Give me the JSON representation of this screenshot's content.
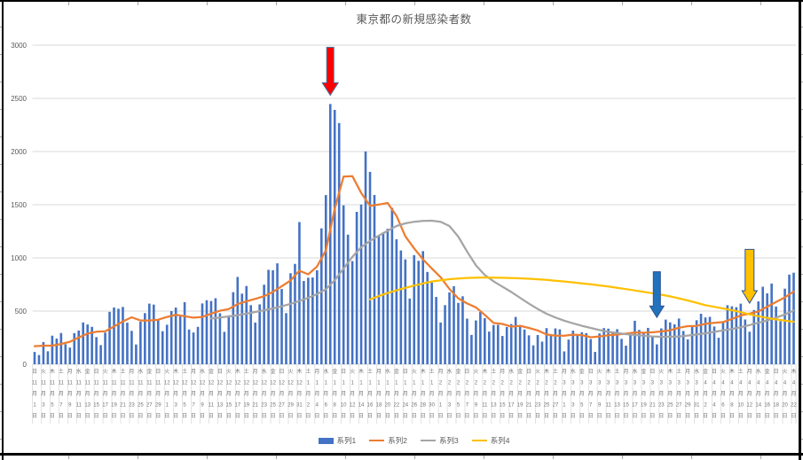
{
  "window": {
    "background": "#FFFFFF",
    "frame_color": "#000000",
    "tick_color": "#A6A6A6"
  },
  "chart_data": {
    "type": "combo-bar-line",
    "title": "東京都の新規感染者数",
    "title_color": "#595959",
    "axis_label_color": "#595959",
    "x_label_color": "#757575",
    "gridline_color": "#D9D9D9",
    "legend_position": "bottom",
    "ylim": [
      0,
      3000
    ],
    "yticks": [
      0,
      500,
      1000,
      1500,
      2000,
      2500,
      3000
    ],
    "x_label_suffix": {
      "month": "月",
      "day": "日"
    },
    "x_label_note": "labels shown every 2nd day; rows stacked vertically: weekday, month, 月, day, 日",
    "x_labels": [
      [
        "日",
        "11",
        "1"
      ],
      [
        "火",
        "11",
        "3"
      ],
      [
        "木",
        "11",
        "5"
      ],
      [
        "土",
        "11",
        "7"
      ],
      [
        "月",
        "11",
        "9"
      ],
      [
        "水",
        "11",
        "11"
      ],
      [
        "金",
        "11",
        "13"
      ],
      [
        "日",
        "11",
        "15"
      ],
      [
        "火",
        "11",
        "17"
      ],
      [
        "木",
        "11",
        "19"
      ],
      [
        "土",
        "11",
        "21"
      ],
      [
        "月",
        "11",
        "23"
      ],
      [
        "水",
        "11",
        "25"
      ],
      [
        "金",
        "11",
        "27"
      ],
      [
        "日",
        "11",
        "29"
      ],
      [
        "火",
        "12",
        "1"
      ],
      [
        "木",
        "12",
        "3"
      ],
      [
        "土",
        "12",
        "5"
      ],
      [
        "月",
        "12",
        "7"
      ],
      [
        "水",
        "12",
        "9"
      ],
      [
        "金",
        "12",
        "11"
      ],
      [
        "日",
        "12",
        "13"
      ],
      [
        "火",
        "12",
        "15"
      ],
      [
        "木",
        "12",
        "17"
      ],
      [
        "土",
        "12",
        "19"
      ],
      [
        "月",
        "12",
        "21"
      ],
      [
        "水",
        "12",
        "23"
      ],
      [
        "金",
        "12",
        "25"
      ],
      [
        "日",
        "12",
        "27"
      ],
      [
        "火",
        "12",
        "29"
      ],
      [
        "木",
        "12",
        "31"
      ],
      [
        "土",
        "1",
        "2"
      ],
      [
        "月",
        "1",
        "4"
      ],
      [
        "水",
        "1",
        "6"
      ],
      [
        "金",
        "1",
        "8"
      ],
      [
        "日",
        "1",
        "10"
      ],
      [
        "火",
        "1",
        "12"
      ],
      [
        "木",
        "1",
        "14"
      ],
      [
        "土",
        "1",
        "16"
      ],
      [
        "月",
        "1",
        "18"
      ],
      [
        "水",
        "1",
        "20"
      ],
      [
        "金",
        "1",
        "22"
      ],
      [
        "日",
        "1",
        "24"
      ],
      [
        "火",
        "1",
        "26"
      ],
      [
        "木",
        "1",
        "28"
      ],
      [
        "土",
        "1",
        "30"
      ],
      [
        "月",
        "2",
        "1"
      ],
      [
        "水",
        "2",
        "3"
      ],
      [
        "金",
        "2",
        "5"
      ],
      [
        "日",
        "2",
        "7"
      ],
      [
        "火",
        "2",
        "9"
      ],
      [
        "木",
        "2",
        "11"
      ],
      [
        "土",
        "2",
        "13"
      ],
      [
        "月",
        "2",
        "15"
      ],
      [
        "水",
        "2",
        "17"
      ],
      [
        "金",
        "2",
        "19"
      ],
      [
        "日",
        "2",
        "21"
      ],
      [
        "火",
        "2",
        "23"
      ],
      [
        "木",
        "2",
        "25"
      ],
      [
        "土",
        "2",
        "27"
      ],
      [
        "月",
        "3",
        "1"
      ],
      [
        "水",
        "3",
        "3"
      ],
      [
        "金",
        "3",
        "5"
      ],
      [
        "日",
        "3",
        "7"
      ],
      [
        "火",
        "3",
        "9"
      ],
      [
        "木",
        "3",
        "11"
      ],
      [
        "土",
        "3",
        "13"
      ],
      [
        "月",
        "3",
        "15"
      ],
      [
        "水",
        "3",
        "17"
      ],
      [
        "金",
        "3",
        "19"
      ],
      [
        "日",
        "3",
        "21"
      ],
      [
        "火",
        "3",
        "23"
      ],
      [
        "木",
        "3",
        "25"
      ],
      [
        "土",
        "3",
        "27"
      ],
      [
        "月",
        "3",
        "29"
      ],
      [
        "水",
        "3",
        "31"
      ],
      [
        "金",
        "4",
        "2"
      ],
      [
        "日",
        "4",
        "4"
      ],
      [
        "火",
        "4",
        "6"
      ],
      [
        "木",
        "4",
        "8"
      ],
      [
        "土",
        "4",
        "10"
      ],
      [
        "月",
        "4",
        "12"
      ],
      [
        "水",
        "4",
        "14"
      ],
      [
        "金",
        "4",
        "16"
      ],
      [
        "日",
        "4",
        "18"
      ],
      [
        "火",
        "4",
        "20"
      ],
      [
        "木",
        "4",
        "22"
      ]
    ],
    "series": [
      {
        "name": "系列1",
        "type": "bar",
        "color": "#4472C4",
        "start": 0,
        "step": 1,
        "values": [
          116,
          87,
          209,
          122,
          269,
          242,
          294,
          189,
          157,
          293,
          317,
          393,
          374,
          352,
          255,
          180,
          298,
          493,
          534,
          522,
          539,
          391,
          314,
          186,
          401,
          481,
          570,
          561,
          418,
          311,
          372,
          500,
          533,
          449,
          584,
          327,
          299,
          352,
          572,
          602,
          595,
          621,
          480,
          305,
          460,
          678,
          821,
          664,
          736,
          556,
          392,
          563,
          748,
          888,
          884,
          949,
          708,
          481,
          856,
          944,
          1337,
          783,
          814,
          816,
          884,
          1278,
          1591,
          2447,
          2392,
          2268,
          1494,
          1219,
          970,
          1433,
          1502,
          2001,
          1809,
          1592,
          1204,
          1240,
          1274,
          1471,
          1175,
          1070,
          986,
          618,
          1026,
          973,
          1064,
          868,
          769,
          633,
          393,
          556,
          676,
          734,
          577,
          639,
          429,
          276,
          412,
          491,
          434,
          307,
          369,
          371,
          266,
          350,
          378,
          445,
          353,
          327,
          272,
          178,
          275,
          213,
          340,
          270,
          337,
          329,
          121,
          232,
          316,
          279,
          301,
          293,
          237,
          116,
          290,
          340,
          335,
          304,
          330,
          239,
          175,
          300,
          409,
          323,
          303,
          342,
          256,
          187,
          337,
          420,
          394,
          376,
          430,
          313,
          234,
          364,
          414,
          475,
          440,
          446,
          355,
          249,
          399,
          555,
          545,
          537,
          570,
          421,
          306,
          510,
          591,
          729,
          667,
          759,
          543,
          405,
          711,
          843,
          861
        ]
      },
      {
        "name": "系列2",
        "type": "line",
        "color": "#ED7D31",
        "start": 0,
        "step": 2,
        "values": [
          170,
          175,
          175,
          191,
          212,
          252,
          288,
          306,
          310,
          355,
          403,
          442,
          412,
          412,
          419,
          445,
          466,
          452,
          438,
          445,
          476,
          503,
          519,
          566,
          592,
          615,
          640,
          681,
          733,
          788,
          880,
          846,
          919,
          1072,
          1460,
          1765,
          1769,
          1611,
          1490,
          1502,
          1517,
          1395,
          1203,
          1089,
          987,
          901,
          818,
          708,
          620,
          572,
          535,
          465,
          388,
          379,
          354,
          362,
          342,
          318,
          280,
          269,
          269,
          278,
          274,
          254,
          262,
          273,
          279,
          288,
          299,
          297,
          301,
          308,
          320,
          343,
          358,
          361,
          381,
          390,
          397,
          427,
          459,
          476,
          497,
          542,
          586,
          629,
          684
        ]
      },
      {
        "name": "系列3",
        "type": "line",
        "color": "#A5A5A5",
        "start": 40,
        "step": 2,
        "values": [
          430,
          440,
          450,
          462,
          476,
          492,
          508,
          525,
          545,
          568,
          595,
          625,
          660,
          705,
          790,
          900,
          1010,
          1100,
          1160,
          1210,
          1255,
          1300,
          1325,
          1340,
          1348,
          1350,
          1340,
          1300,
          1200,
          1060,
          930,
          840,
          780,
          730,
          680,
          625,
          570,
          520,
          475,
          440,
          410,
          385,
          362,
          342,
          322,
          305,
          293,
          283,
          275,
          268,
          262,
          258,
          258,
          262,
          270,
          280,
          292,
          305,
          318,
          332,
          348,
          368,
          390,
          412,
          438,
          468,
          505
        ]
      },
      {
        "name": "系列4",
        "type": "line",
        "color": "#FFC000",
        "start": 76,
        "step": 2,
        "values": [
          610,
          642,
          670,
          695,
          718,
          740,
          760,
          778,
          790,
          800,
          807,
          812,
          815,
          816,
          815,
          813,
          811,
          808,
          804,
          799,
          793,
          786,
          778,
          770,
          761,
          752,
          742,
          731,
          719,
          707,
          694,
          681,
          668,
          654,
          638,
          620,
          600,
          578,
          556,
          540,
          525,
          508,
          490,
          470,
          452,
          436,
          422,
          410,
          400
        ]
      }
    ],
    "annotations": [
      {
        "name": "red-down-arrow",
        "fill": "#FF0000",
        "stroke": "#41719C",
        "day_index": 67,
        "top_value": 2980,
        "tip_value": 2530,
        "shaft_w": 8,
        "head_w": 18,
        "head_h": 14
      },
      {
        "name": "blue-down-arrow",
        "fill": "#2072BC",
        "stroke": "#2F528F",
        "day_index": 141,
        "top_value": 870,
        "tip_value": 440,
        "shaft_w": 8,
        "head_w": 16,
        "head_h": 13
      },
      {
        "name": "yellow-down-arrow",
        "fill": "#FFC000",
        "stroke": "#2F528F",
        "day_index": 162,
        "top_value": 1080,
        "tip_value": 575,
        "shaft_w": 10,
        "head_w": 17,
        "head_h": 14
      }
    ]
  }
}
